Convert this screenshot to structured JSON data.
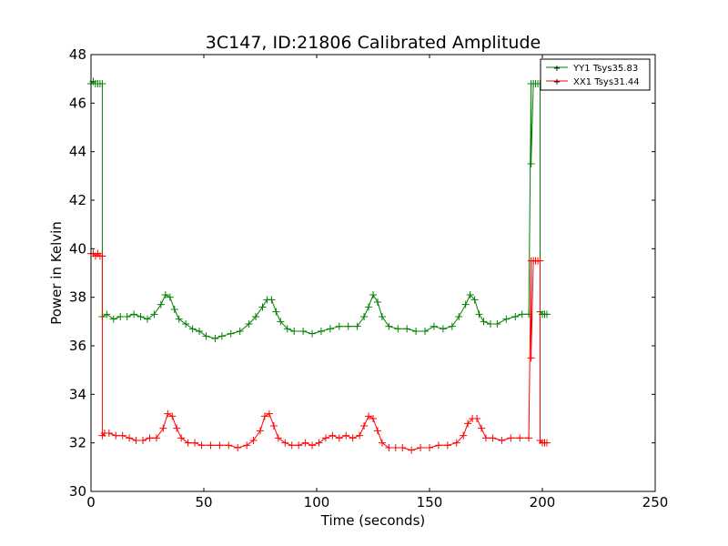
{
  "chart_data": {
    "type": "line",
    "title": "3C147, ID:21806 Calibrated Amplitude",
    "xlabel": "Time (seconds)",
    "ylabel": "Power in Kelvin",
    "xlim": [
      0,
      250
    ],
    "ylim": [
      30,
      48
    ],
    "xticks": [
      0,
      50,
      100,
      150,
      200,
      250
    ],
    "yticks": [
      30,
      32,
      34,
      36,
      38,
      40,
      42,
      44,
      46,
      48
    ],
    "grid": false,
    "legend_position": "top-right",
    "marker": "+",
    "series": [
      {
        "name": "YY1 Tsys35.83",
        "color": "#008000",
        "x": [
          0,
          1,
          2,
          3,
          4,
          5,
          5,
          7,
          10,
          13,
          16,
          19,
          22,
          25,
          28,
          31,
          33,
          35,
          37,
          39,
          42,
          45,
          48,
          51,
          55,
          58,
          62,
          66,
          70,
          73,
          76,
          78,
          80,
          82,
          84,
          87,
          90,
          94,
          98,
          102,
          106,
          110,
          114,
          118,
          121,
          123,
          125,
          127,
          129,
          132,
          136,
          140,
          144,
          148,
          152,
          156,
          160,
          163,
          166,
          168,
          170,
          172,
          174,
          177,
          180,
          184,
          188,
          191,
          194,
          195,
          195,
          196,
          196,
          197,
          198,
          199,
          199,
          200,
          201,
          202
        ],
        "values": [
          46.8,
          46.9,
          46.8,
          46.8,
          46.8,
          46.8,
          37.2,
          37.3,
          37.1,
          37.2,
          37.2,
          37.3,
          37.2,
          37.1,
          37.3,
          37.7,
          38.1,
          38.0,
          37.5,
          37.1,
          36.9,
          36.7,
          36.6,
          36.4,
          36.3,
          36.4,
          36.5,
          36.6,
          36.9,
          37.2,
          37.6,
          37.9,
          37.9,
          37.4,
          37.0,
          36.7,
          36.6,
          36.6,
          36.5,
          36.6,
          36.7,
          36.8,
          36.8,
          36.8,
          37.2,
          37.6,
          38.1,
          37.8,
          37.2,
          36.8,
          36.7,
          36.7,
          36.6,
          36.6,
          36.8,
          36.7,
          36.8,
          37.2,
          37.7,
          38.1,
          37.9,
          37.3,
          37.0,
          36.9,
          36.9,
          37.1,
          37.2,
          37.3,
          37.3,
          46.8,
          43.5,
          46.8,
          46.8,
          46.8,
          46.8,
          46.8,
          37.4,
          37.3,
          37.3,
          37.3
        ]
      },
      {
        "name": "XX1 Tsys31.44",
        "color": "#ff0000",
        "x": [
          0,
          1,
          2,
          3,
          4,
          5,
          5,
          6,
          8,
          11,
          14,
          17,
          20,
          23,
          26,
          29,
          32,
          34,
          36,
          38,
          40,
          43,
          46,
          49,
          53,
          57,
          61,
          65,
          69,
          72,
          75,
          77,
          79,
          81,
          83,
          86,
          89,
          92,
          95,
          98,
          101,
          104,
          107,
          110,
          113,
          116,
          119,
          121,
          123,
          125,
          127,
          129,
          132,
          135,
          138,
          142,
          146,
          150,
          154,
          158,
          162,
          165,
          167,
          169,
          171,
          173,
          175,
          178,
          182,
          186,
          190,
          194,
          195,
          195,
          196,
          196,
          197,
          198,
          199,
          199,
          200,
          201,
          202
        ],
        "values": [
          39.8,
          39.8,
          39.7,
          39.8,
          39.7,
          39.7,
          32.3,
          32.4,
          32.4,
          32.3,
          32.3,
          32.2,
          32.1,
          32.1,
          32.2,
          32.2,
          32.6,
          33.2,
          33.1,
          32.6,
          32.2,
          32.0,
          32.0,
          31.9,
          31.9,
          31.9,
          31.9,
          31.8,
          31.9,
          32.1,
          32.5,
          33.1,
          33.2,
          32.7,
          32.2,
          32.0,
          31.9,
          31.9,
          32.0,
          31.9,
          32.0,
          32.2,
          32.3,
          32.2,
          32.3,
          32.2,
          32.3,
          32.7,
          33.1,
          33.0,
          32.5,
          32.0,
          31.8,
          31.8,
          31.8,
          31.7,
          31.8,
          31.8,
          31.9,
          31.9,
          32.0,
          32.3,
          32.8,
          33.0,
          33.0,
          32.6,
          32.2,
          32.2,
          32.1,
          32.2,
          32.2,
          32.2,
          39.5,
          35.5,
          39.5,
          39.5,
          39.5,
          39.5,
          39.5,
          32.1,
          32.0,
          32.0,
          32.0
        ]
      }
    ]
  }
}
